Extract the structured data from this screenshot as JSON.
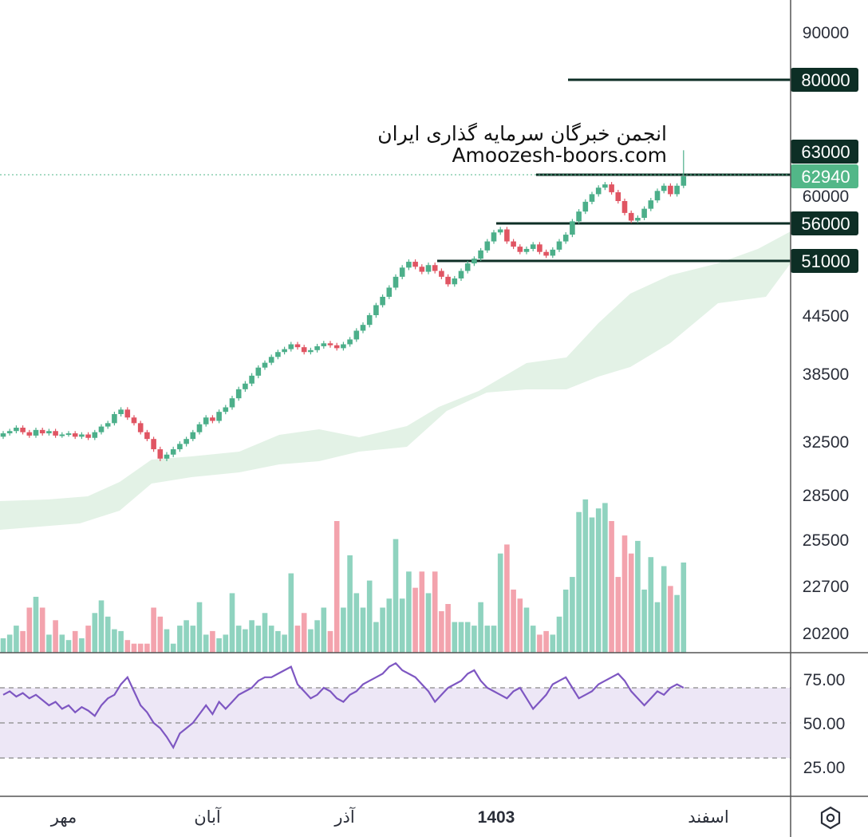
{
  "colors": {
    "up": "#4caf8a",
    "down": "#e05563",
    "vol_up": "#8fd3bf",
    "vol_down": "#f3a3ad",
    "cloud": "#e3f2e6",
    "rsi_line": "#7e57c2",
    "rsi_band": "#ede7f6",
    "level_line": "#0d2e25",
    "last_price": "#52b788"
  },
  "watermark": {
    "line1": "انجمن خبرگان سرمایه گذاری ایران",
    "line2": "Amoozesh-boors.com"
  },
  "chart_data": [
    {
      "type": "candlestick",
      "price_axis_ticks": [
        "90000",
        "60000",
        "44500",
        "38500",
        "32500",
        "28500",
        "25500",
        "22700",
        "20200"
      ],
      "horizontal_levels": [
        {
          "price": 80000,
          "label": "80000"
        },
        {
          "price": 63000,
          "label": "63000"
        },
        {
          "price": 56000,
          "label": "56000"
        },
        {
          "price": 51000,
          "label": "51000"
        }
      ],
      "last_price": {
        "value": 62940,
        "label": "62940"
      },
      "time_axis_labels": [
        "مهر",
        "آبان",
        "آذر",
        "1403",
        "اسفند"
      ],
      "series": {
        "close": [
          33200,
          33400,
          33700,
          33300,
          33000,
          33500,
          33200,
          33400,
          33000,
          33100,
          33200,
          32900,
          33100,
          32800,
          33300,
          33800,
          34100,
          34900,
          35300,
          34600,
          34100,
          33300,
          32700,
          31900,
          31200,
          31500,
          31900,
          32300,
          32700,
          33300,
          34000,
          34600,
          34300,
          35100,
          35500,
          36300,
          37100,
          37600,
          38300,
          39100,
          39600,
          40200,
          40700,
          41000,
          41500,
          41200,
          40700,
          40900,
          41300,
          41600,
          41400,
          41100,
          41500,
          42000,
          42900,
          43500,
          44500,
          45700,
          46700,
          47800,
          49100,
          50200,
          50900,
          50300,
          49700,
          50500,
          49800,
          49100,
          48200,
          48900,
          49800,
          50700,
          51300,
          52400,
          53600,
          54800,
          55200,
          53600,
          52900,
          52200,
          52600,
          53200,
          52200,
          51700,
          52500,
          53600,
          54500,
          56300,
          57700,
          59100,
          60200,
          61200,
          61700,
          60500,
          59200,
          57500,
          56400,
          56800,
          58100,
          59300,
          60700,
          61500,
          60200,
          61500,
          62940
        ],
        "volume": [
          0.08,
          0.1,
          0.15,
          0.12,
          0.25,
          0.31,
          0.25,
          0.1,
          0.18,
          0.1,
          0.07,
          0.12,
          0.08,
          0.15,
          0.22,
          0.29,
          0.2,
          0.13,
          0.12,
          0.07,
          0.05,
          0.05,
          0.05,
          0.25,
          0.2,
          0.13,
          0.05,
          0.15,
          0.18,
          0.15,
          0.28,
          0.1,
          0.12,
          0.08,
          0.1,
          0.33,
          0.15,
          0.13,
          0.18,
          0.15,
          0.22,
          0.15,
          0.12,
          0.1,
          0.44,
          0.15,
          0.22,
          0.13,
          0.18,
          0.25,
          0.12,
          0.73,
          0.25,
          0.54,
          0.33,
          0.25,
          0.4,
          0.17,
          0.25,
          0.3,
          0.63,
          0.3,
          0.45,
          0.36,
          0.45,
          0.33,
          0.45,
          0.23,
          0.27,
          0.17,
          0.17,
          0.17,
          0.15,
          0.28,
          0.15,
          0.15,
          0.55,
          0.6,
          0.35,
          0.3,
          0.25,
          0.15,
          0.1,
          0.12,
          0.1,
          0.2,
          0.35,
          0.42,
          0.78,
          0.85,
          0.75,
          0.8,
          0.83,
          0.73,
          0.42,
          0.65,
          0.55,
          0.62,
          0.35,
          0.53,
          0.28,
          0.48,
          0.37,
          0.32,
          0.5
        ],
        "rsi": [
          66,
          68,
          65,
          67,
          64,
          66,
          63,
          60,
          62,
          58,
          60,
          56,
          59,
          57,
          54,
          60,
          64,
          66,
          72,
          76,
          68,
          60,
          56,
          50,
          47,
          42,
          36,
          44,
          47,
          50,
          55,
          60,
          55,
          62,
          58,
          62,
          66,
          68,
          70,
          74,
          76,
          76,
          78,
          80,
          82,
          72,
          68,
          64,
          66,
          70,
          68,
          64,
          62,
          66,
          68,
          72,
          74,
          76,
          78,
          82,
          84,
          80,
          78,
          76,
          72,
          68,
          62,
          66,
          70,
          72,
          74,
          78,
          80,
          74,
          70,
          68,
          66,
          64,
          68,
          70,
          64,
          58,
          62,
          66,
          72,
          74,
          76,
          70,
          64,
          66,
          68,
          72,
          74,
          76,
          78,
          74,
          68,
          64,
          60,
          64,
          68,
          66,
          70,
          72,
          70
        ]
      }
    }
  ],
  "rsi_panel": {
    "ticks": [
      "75.00",
      "50.00",
      "25.00"
    ]
  }
}
